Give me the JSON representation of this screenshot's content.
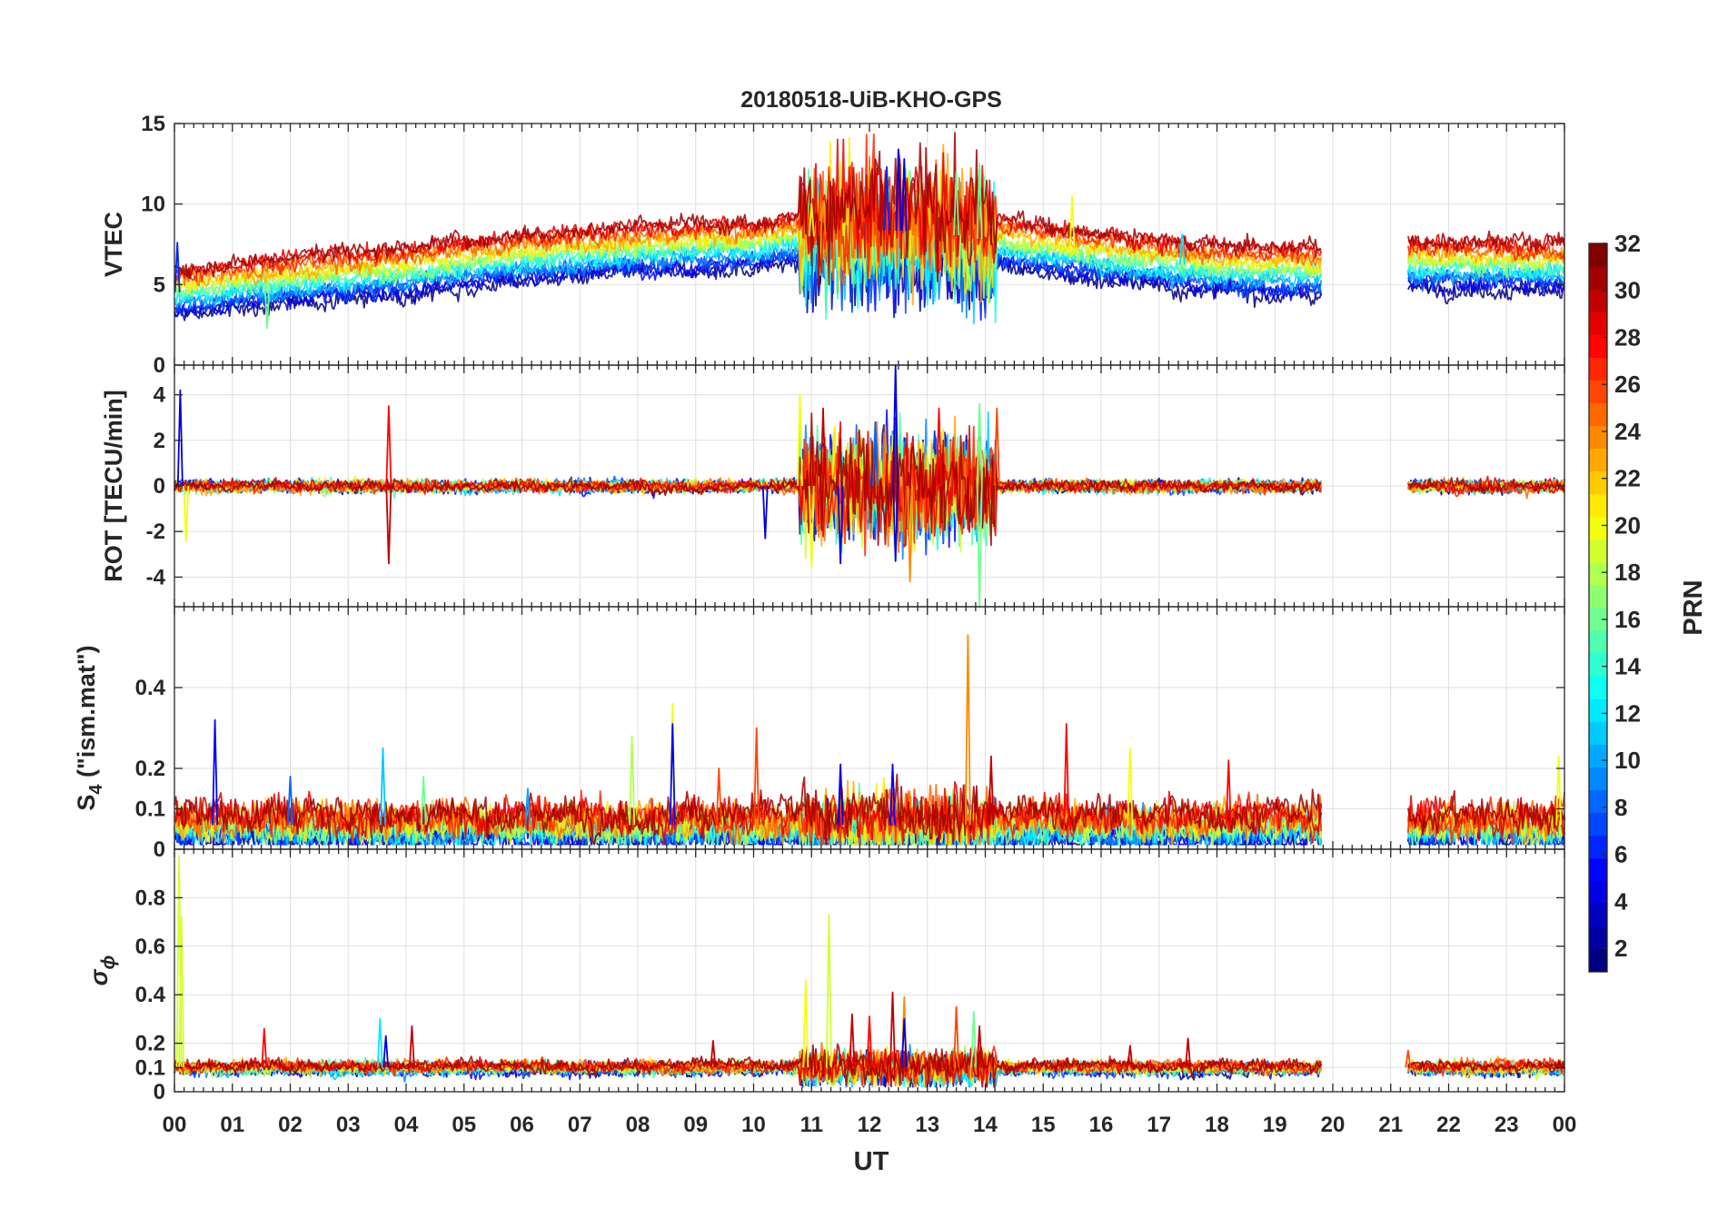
{
  "chart_data": {
    "type": "line",
    "title": "20180518-UiB-KHO-GPS",
    "xlabel": "UT",
    "x_tick_labels": [
      "00",
      "01",
      "02",
      "03",
      "04",
      "05",
      "06",
      "07",
      "08",
      "09",
      "10",
      "11",
      "12",
      "13",
      "14",
      "15",
      "16",
      "17",
      "18",
      "19",
      "20",
      "21",
      "22",
      "23",
      "00"
    ],
    "xlim": [
      0,
      24
    ],
    "data_gap_hours": [
      19.8,
      21.3
    ],
    "panels": [
      {
        "name": "vtec",
        "ylabel": "VTEC",
        "ylim": [
          0,
          15
        ],
        "y_ticks": [
          0,
          5,
          10,
          15
        ],
        "y_tick_labels": [
          "0",
          "5",
          "10",
          "15"
        ],
        "baseline": [
          [
            0,
            4.5
          ],
          [
            2,
            5.3
          ],
          [
            4,
            5.9
          ],
          [
            6,
            6.7
          ],
          [
            8,
            7.2
          ],
          [
            10,
            7.5
          ],
          [
            11,
            8.0
          ],
          [
            12,
            8.4
          ],
          [
            13,
            8.3
          ],
          [
            14,
            7.8
          ],
          [
            15,
            7.2
          ],
          [
            16,
            6.8
          ],
          [
            17,
            6.4
          ],
          [
            18,
            6.0
          ],
          [
            19.8,
            5.8
          ],
          [
            21.3,
            6.3
          ],
          [
            24,
            6.2
          ]
        ],
        "spread": 1.5,
        "noise": 0.25,
        "storm_window": [
          10.8,
          14.2
        ],
        "storm_amp": 1.6
      },
      {
        "name": "rot",
        "ylabel": "ROT [TECU/min]",
        "ylim": [
          -5.3,
          5.3
        ],
        "y_ticks": [
          -4,
          -2,
          0,
          2,
          4
        ],
        "y_tick_labels": [
          "-4",
          "-2",
          "0",
          "2",
          "4"
        ],
        "baseline": [
          [
            0,
            0
          ],
          [
            24,
            0
          ]
        ],
        "spread": 0,
        "noise": 0.12,
        "storm_window": [
          10.8,
          14.2
        ],
        "storm_amp": 1.1
      },
      {
        "name": "s4",
        "ylabel_main": "S",
        "ylabel_sub": "4",
        "ylabel_rest": " (\"ism.mat\")",
        "ylim": [
          0,
          0.6
        ],
        "y_ticks": [
          0,
          0.1,
          0.2,
          0.4
        ],
        "y_tick_labels": [
          "0",
          "0.1",
          "0.2",
          "0.4"
        ],
        "baseline": [
          [
            0,
            0.06
          ],
          [
            24,
            0.06
          ]
        ],
        "spread": 0.03,
        "noise": 0.02,
        "storm_window": [
          10.8,
          14.2
        ],
        "storm_amp": 0.015
      },
      {
        "name": "sigma-phi",
        "ylabel_symbol": "σ",
        "ylabel_sub": "ϕ",
        "ylim": [
          0,
          1.0
        ],
        "y_ticks": [
          0,
          0.1,
          0.2,
          0.4,
          0.6,
          0.8
        ],
        "y_tick_labels": [
          "0",
          "0.1",
          "0.2",
          "0.4",
          "0.6",
          "0.8"
        ],
        "baseline": [
          [
            0,
            0.1
          ],
          [
            24,
            0.1
          ]
        ],
        "spread": 0.01,
        "noise": 0.012,
        "storm_window": [
          10.8,
          14.2
        ],
        "storm_amp": 0.025
      }
    ],
    "spikes": {
      "vtec": [
        [
          0.05,
          7.6,
          6
        ],
        [
          12.5,
          13.4,
          4
        ],
        [
          12.6,
          12.8,
          4
        ],
        [
          13.5,
          12.0,
          16
        ],
        [
          13.9,
          12.5,
          16
        ],
        [
          12.2,
          11.5,
          30
        ],
        [
          12.3,
          12.3,
          6
        ],
        [
          11.0,
          10.0,
          20
        ],
        [
          11.2,
          10.2,
          24
        ],
        [
          15.5,
          10.5,
          20
        ],
        [
          17.4,
          8.1,
          12
        ],
        [
          1.6,
          2.3,
          16
        ]
      ],
      "rot": [
        [
          0.1,
          4.2,
          4
        ],
        [
          0.2,
          -2.4,
          20
        ],
        [
          3.7,
          3.5,
          28
        ],
        [
          3.7,
          -3.4,
          30
        ],
        [
          10.8,
          4.0,
          20
        ],
        [
          11.2,
          3.4,
          30
        ],
        [
          11.0,
          -3.6,
          20
        ],
        [
          12.45,
          5.3,
          4
        ],
        [
          12.45,
          -3.3,
          4
        ],
        [
          12.7,
          -4.2,
          24
        ],
        [
          13.9,
          3.6,
          16
        ],
        [
          13.9,
          -5.3,
          16
        ],
        [
          14.2,
          3.4,
          26
        ],
        [
          11.5,
          -3.4,
          4
        ],
        [
          13.2,
          3.4,
          28
        ],
        [
          12.1,
          2.8,
          8
        ],
        [
          12.6,
          -2.5,
          26
        ],
        [
          10.2,
          -2.3,
          4
        ]
      ],
      "s4": [
        [
          0.7,
          0.32,
          5
        ],
        [
          8.6,
          0.36,
          20
        ],
        [
          8.6,
          0.31,
          5
        ],
        [
          13.7,
          0.53,
          24
        ],
        [
          14.1,
          0.23,
          30
        ],
        [
          10.05,
          0.3,
          26
        ],
        [
          15.4,
          0.31,
          28
        ],
        [
          18.2,
          0.22,
          28
        ],
        [
          2.0,
          0.18,
          8
        ],
        [
          3.6,
          0.25,
          11
        ],
        [
          4.3,
          0.18,
          16
        ],
        [
          6.1,
          0.15,
          10
        ],
        [
          7.9,
          0.28,
          18
        ],
        [
          11.5,
          0.21,
          4
        ],
        [
          16.5,
          0.25,
          20
        ],
        [
          23.9,
          0.23,
          20
        ],
        [
          9.4,
          0.2,
          26
        ],
        [
          12.4,
          0.21,
          5
        ]
      ],
      "sigma-phi": [
        [
          0.08,
          0.97,
          19
        ],
        [
          0.12,
          0.72,
          19
        ],
        [
          1.55,
          0.26,
          28
        ],
        [
          3.55,
          0.3,
          12
        ],
        [
          3.65,
          0.23,
          4
        ],
        [
          4.1,
          0.27,
          30
        ],
        [
          9.3,
          0.21,
          30
        ],
        [
          10.9,
          0.46,
          20
        ],
        [
          11.3,
          0.73,
          19
        ],
        [
          11.7,
          0.32,
          30
        ],
        [
          12.0,
          0.31,
          28
        ],
        [
          12.4,
          0.41,
          30
        ],
        [
          12.6,
          0.39,
          24
        ],
        [
          12.6,
          0.3,
          4
        ],
        [
          13.5,
          0.35,
          26
        ],
        [
          13.8,
          0.33,
          16
        ],
        [
          13.9,
          0.27,
          30
        ],
        [
          16.5,
          0.19,
          30
        ],
        [
          17.5,
          0.22,
          30
        ],
        [
          21.3,
          0.17,
          26
        ]
      ]
    },
    "colorbar": {
      "label": "PRN",
      "min": 1,
      "max": 32,
      "ticks": [
        2,
        4,
        6,
        8,
        10,
        12,
        14,
        16,
        18,
        20,
        22,
        24,
        26,
        28,
        30,
        32
      ],
      "tick_labels": [
        "2",
        "4",
        "6",
        "8",
        "10",
        "12",
        "14",
        "16",
        "18",
        "20",
        "22",
        "24",
        "26",
        "28",
        "30",
        "32"
      ],
      "colormap": "jet"
    },
    "series_prn": [
      1,
      3,
      5,
      7,
      9,
      11,
      13,
      15,
      17,
      19,
      21,
      23,
      25,
      27,
      29,
      31
    ]
  }
}
